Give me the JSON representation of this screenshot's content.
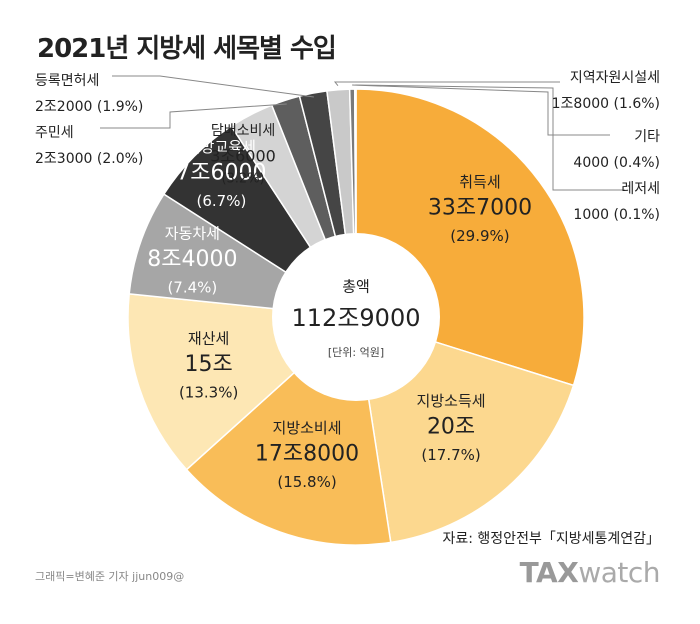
{
  "title": "2021년 지방세 세목별 수입",
  "center": {
    "label": "총액",
    "total": "112조9000",
    "unit": "[단위: 억원]"
  },
  "source": "자료: 행정안전부「지방세통계연감」",
  "credit": "그래픽=변혜준 기자 jjun009@",
  "brand": {
    "bold": "TAX",
    "light": "watch"
  },
  "chart_data": {
    "type": "pie",
    "title": "2021년 지방세 세목별 수입",
    "unit": "억원",
    "total": 1129000,
    "slices": [
      {
        "name": "취득세",
        "value_label": "33조7000",
        "percent_label": "(29.9%)",
        "value": 337000,
        "percent": 29.9,
        "color": "#F7AC3A",
        "label_pos": "inside"
      },
      {
        "name": "지방소득세",
        "value_label": "20조",
        "percent_label": "(17.7%)",
        "value": 200000,
        "percent": 17.7,
        "color": "#FCD88F",
        "label_pos": "inside"
      },
      {
        "name": "지방소비세",
        "value_label": "17조8000",
        "percent_label": "(15.8%)",
        "value": 178000,
        "percent": 15.8,
        "color": "#F9BD58",
        "label_pos": "inside"
      },
      {
        "name": "재산세",
        "value_label": "15조",
        "percent_label": "(13.3%)",
        "value": 150000,
        "percent": 13.3,
        "color": "#FDE7B4",
        "label_pos": "inside"
      },
      {
        "name": "자동차세",
        "value_label": "8조4000",
        "percent_label": "(7.4%)",
        "value": 84000,
        "percent": 7.4,
        "color": "#A6A6A6",
        "label_pos": "inside"
      },
      {
        "name": "지방교육세",
        "value_label": "7조6000",
        "percent_label": "(6.7%)",
        "value": 76000,
        "percent": 6.7,
        "color": "#333333",
        "label_pos": "inside"
      },
      {
        "name": "담배소비세",
        "value_label": "3조6000",
        "percent_label": "(3.2%)",
        "value": 36000,
        "percent": 3.2,
        "color": "#D4D4D4",
        "label_pos": "inside"
      },
      {
        "name": "주민세",
        "value_label": "2조3000",
        "percent_label": "(2.0%)",
        "value": 23000,
        "percent": 2.0,
        "color": "#5E5E5E",
        "label_pos": "outside-left"
      },
      {
        "name": "등록면허세",
        "value_label": "2조2000",
        "percent_label": "(1.9%)",
        "value": 22000,
        "percent": 1.9,
        "color": "#454545",
        "label_pos": "outside-left"
      },
      {
        "name": "지역자원시설세",
        "value_label": "1조8000",
        "percent_label": "(1.6%)",
        "value": 18000,
        "percent": 1.6,
        "color": "#C9C9C9",
        "label_pos": "outside-right"
      },
      {
        "name": "기타",
        "value_label": "4000",
        "percent_label": "(0.4%)",
        "value": 4000,
        "percent": 0.4,
        "color": "#7A7A7A",
        "label_pos": "outside-right"
      },
      {
        "name": "레저세",
        "value_label": "1000",
        "percent_label": "(0.1%)",
        "value": 1000,
        "percent": 0.1,
        "color": "#444444",
        "label_pos": "outside-right"
      }
    ]
  }
}
